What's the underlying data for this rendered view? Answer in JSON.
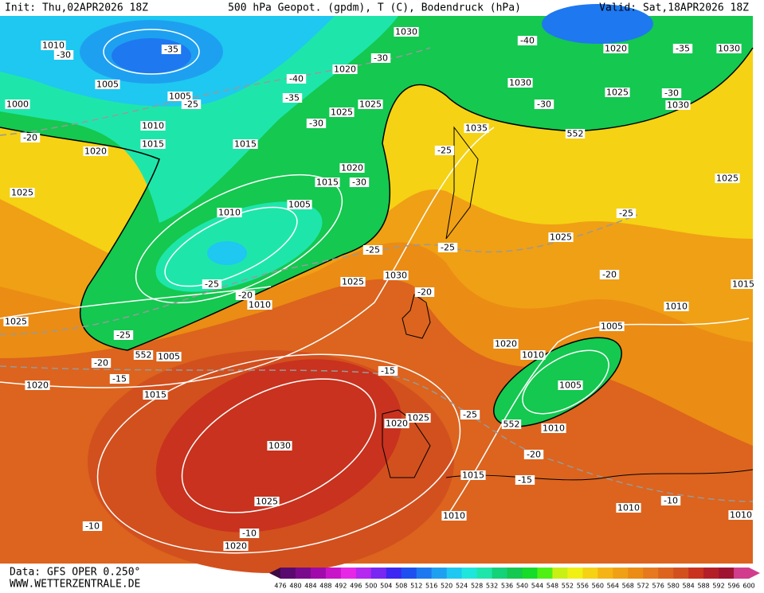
{
  "header": {
    "init": "Init: Thu,02APR2026 18Z",
    "title": "500 hPa Geopot. (gpdm), T (C), Bodendruck (hPa)",
    "valid": "Valid: Sat,18APR2026 18Z"
  },
  "footer": {
    "data": "Data: GFS OPER 0.250°",
    "site": "WWW.WETTERZENTRALE.DE"
  },
  "colorbar": {
    "ticks": [
      476,
      480,
      484,
      488,
      492,
      496,
      500,
      504,
      508,
      512,
      516,
      520,
      524,
      528,
      532,
      536,
      540,
      544,
      548,
      552,
      556,
      560,
      564,
      568,
      572,
      576,
      580,
      584,
      588,
      592,
      596,
      600
    ],
    "colors": [
      "#3c0a46",
      "#5a0a6e",
      "#7a0a8c",
      "#a00aaa",
      "#c814c8",
      "#e628e6",
      "#b428f0",
      "#7828f0",
      "#3c28f0",
      "#1e50f0",
      "#1e78f0",
      "#1ea0f0",
      "#1ec8f0",
      "#1ee6dc",
      "#1ee6aa",
      "#14d278",
      "#14c850",
      "#14dc28",
      "#50f014",
      "#c8f014",
      "#f0f014",
      "#f5d214",
      "#f5b414",
      "#f0a014",
      "#eb8c14",
      "#e6781e",
      "#dc641e",
      "#d2501e",
      "#c8321e",
      "#b41e28",
      "#a01432",
      "#d23c8c"
    ]
  },
  "map_labels": [
    1010,
    -30,
    1005,
    1000,
    1005,
    -25,
    -35,
    1010,
    1015,
    1020,
    -20,
    1025,
    1015,
    1010,
    1005,
    1015,
    1020,
    -30,
    1025,
    1020,
    -30,
    -40,
    -35,
    -30,
    1025,
    1030,
    1035,
    -25,
    552,
    -40,
    1020,
    -35,
    1030,
    1030,
    1025,
    -30,
    1030,
    -30,
    1025,
    -25,
    1025,
    -25,
    -25,
    -25,
    1025,
    1030,
    -20,
    -20,
    1010,
    1025,
    1015,
    -20,
    1010,
    1005,
    1020,
    1010,
    1005,
    -25,
    552,
    1005,
    -20,
    -15,
    1020,
    1015,
    -15,
    1025,
    1020,
    -25,
    552,
    1010,
    1030,
    -20,
    1015,
    -15,
    1025,
    -10,
    1010,
    1010,
    1010,
    -10,
    -10,
    1020
  ]
}
